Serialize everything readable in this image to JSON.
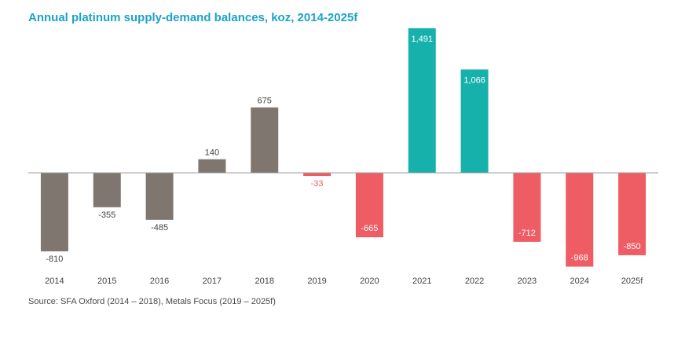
{
  "chart_data": {
    "type": "bar",
    "title": "Annual platinum supply-demand balances, koz, 2014-2025f",
    "xlabel": "",
    "ylabel": "",
    "categories": [
      "2014",
      "2015",
      "2016",
      "2017",
      "2018",
      "2019",
      "2020",
      "2021",
      "2022",
      "2023",
      "2024",
      "2025f"
    ],
    "values": [
      -810,
      -355,
      -485,
      140,
      675,
      -33,
      -665,
      1491,
      1066,
      -712,
      -968,
      -850
    ],
    "labels": [
      "-810",
      "-355",
      "-485",
      "140",
      "675",
      "-33",
      "-665",
      "1,491",
      "1,066",
      "-712",
      "-968",
      "-850"
    ],
    "groups": [
      "historical",
      "historical",
      "historical",
      "historical",
      "historical",
      "forecast",
      "forecast",
      "forecast",
      "forecast",
      "forecast",
      "forecast",
      "forecast"
    ],
    "ylim": [
      -1100,
      1550
    ],
    "grid": false,
    "source": "Source: SFA Oxford (2014 – 2018), Metals Focus (2019 – 2025f)"
  },
  "colors": {
    "title": "#1ba3c6",
    "historical": "#7f776f",
    "surplus": "#17b1ab",
    "deficit": "#ee5c64",
    "axis": "#9e9e9e",
    "text": "#444444"
  }
}
